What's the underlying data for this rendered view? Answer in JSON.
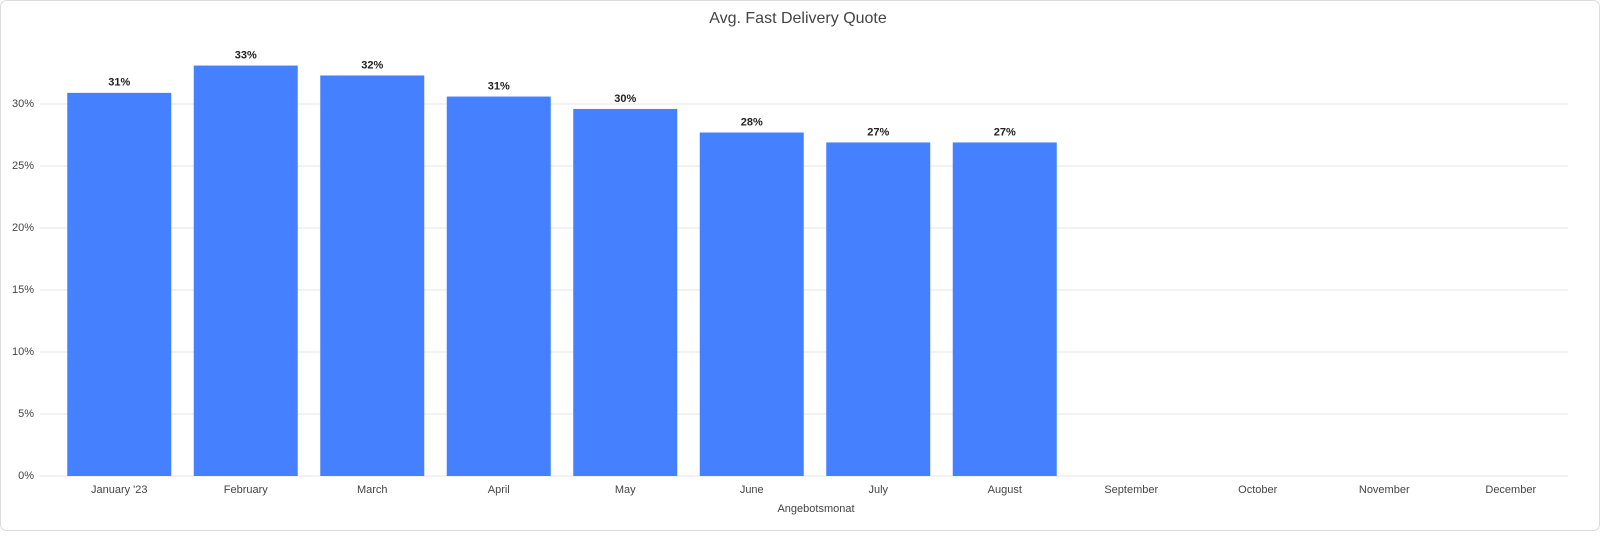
{
  "chart_data": {
    "type": "bar",
    "title": "Avg. Fast Delivery Quote",
    "x_label": "Angebotsmonat",
    "categories": [
      "January '23",
      "February",
      "March",
      "April",
      "May",
      "June",
      "July",
      "August",
      "September",
      "October",
      "November",
      "December"
    ],
    "values": [
      30.9,
      33.1,
      32.3,
      30.6,
      29.6,
      27.7,
      26.9,
      26.9,
      null,
      null,
      null,
      null
    ],
    "value_labels": [
      "31%",
      "33%",
      "32%",
      "31%",
      "30%",
      "28%",
      "27%",
      "27%",
      null,
      null,
      null,
      null
    ],
    "color": "#4480ff",
    "ylim": [
      0,
      35
    ],
    "yticks": [
      {
        "value": 0,
        "label": "0%"
      },
      {
        "value": 5,
        "label": "5%"
      },
      {
        "value": 10,
        "label": "10%"
      },
      {
        "value": 15,
        "label": "15%"
      },
      {
        "value": 20,
        "label": "20%"
      },
      {
        "value": 25,
        "label": "25%"
      },
      {
        "value": 30,
        "label": "30%"
      }
    ],
    "grid": true
  }
}
